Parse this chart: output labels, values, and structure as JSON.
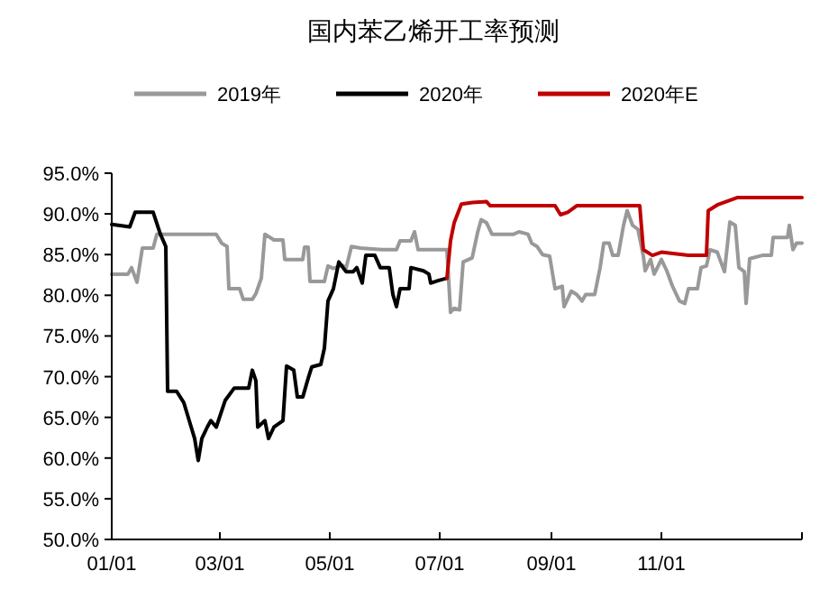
{
  "chart_data": {
    "type": "line",
    "title": "国内苯乙烯开工率预测",
    "legend": "top",
    "xlim": [
      "2020-01-01",
      "2021-01-18"
    ],
    "xticks": [
      {
        "value": "2020-01-01",
        "label": "01/01"
      },
      {
        "value": "2020-03-01",
        "label": "03/01"
      },
      {
        "value": "2020-05-01",
        "label": "05/01"
      },
      {
        "value": "2020-07-01",
        "label": "07/01"
      },
      {
        "value": "2020-09-01",
        "label": "09/01"
      },
      {
        "value": "2020-11-01",
        "label": "11/01"
      },
      {
        "value": "2021-01-18",
        "label": null
      }
    ],
    "ylim": [
      50,
      95
    ],
    "yticks": [
      {
        "value": 50,
        "label": "50.0%"
      },
      {
        "value": 55,
        "label": "55.0%"
      },
      {
        "value": 60,
        "label": "60.0%"
      },
      {
        "value": 65,
        "label": "65.0%"
      },
      {
        "value": 70,
        "label": "70.0%"
      },
      {
        "value": 75,
        "label": "75.0%"
      },
      {
        "value": 80,
        "label": "80.0%"
      },
      {
        "value": 85,
        "label": "85.0%"
      },
      {
        "value": 90,
        "label": "90.0%"
      },
      {
        "value": 95,
        "label": "95.0%"
      }
    ],
    "series": [
      {
        "name": "2019年",
        "color": "#999999",
        "x": [
          "2020-01-01",
          "2020-01-10",
          "2020-01-12",
          "2020-01-15",
          "2020-01-18",
          "2020-01-24",
          "2020-01-26",
          "2020-02-28",
          "2020-03-02",
          "2020-03-05",
          "2020-03-06",
          "2020-03-12",
          "2020-03-14",
          "2020-03-19",
          "2020-03-21",
          "2020-03-24",
          "2020-03-26",
          "2020-03-31",
          "2020-04-05",
          "2020-04-06",
          "2020-04-16",
          "2020-04-17",
          "2020-04-19",
          "2020-04-20",
          "2020-04-28",
          "2020-04-30",
          "2020-05-03",
          "2020-05-08",
          "2020-05-10",
          "2020-05-13",
          "2020-05-18",
          "2020-05-30",
          "2020-06-07",
          "2020-06-09",
          "2020-06-15",
          "2020-06-17",
          "2020-06-19",
          "2020-07-05",
          "2020-07-07",
          "2020-07-09",
          "2020-07-12",
          "2020-07-14",
          "2020-07-19",
          "2020-07-22",
          "2020-07-24",
          "2020-07-27",
          "2020-07-30",
          "2020-08-11",
          "2020-08-14",
          "2020-08-19",
          "2020-08-21",
          "2020-08-24",
          "2020-08-27",
          "2020-08-31",
          "2020-09-03",
          "2020-09-07",
          "2020-09-08",
          "2020-09-12",
          "2020-09-15",
          "2020-09-18",
          "2020-09-20",
          "2020-09-25",
          "2020-09-28",
          "2020-09-30",
          "2020-10-03",
          "2020-10-05",
          "2020-10-08",
          "2020-10-11",
          "2020-10-13",
          "2020-10-16",
          "2020-10-19",
          "2020-10-22",
          "2020-10-23",
          "2020-10-26",
          "2020-10-28",
          "2020-11-01",
          "2020-11-04",
          "2020-11-07",
          "2020-11-11",
          "2020-11-14",
          "2020-11-16",
          "2020-11-21",
          "2020-11-23",
          "2020-11-26",
          "2020-11-28",
          "2020-12-02",
          "2020-12-06",
          "2020-12-09",
          "2020-12-12",
          "2020-12-14",
          "2020-12-17",
          "2020-12-18",
          "2020-12-20",
          "2020-12-27",
          "2021-01-01",
          "2021-01-02",
          "2021-01-10",
          "2021-01-11",
          "2021-01-13",
          "2021-01-15",
          "2021-01-18"
        ],
        "values": [
          82.6,
          82.6,
          83.4,
          81.6,
          85.8,
          85.8,
          87.5,
          87.5,
          86.4,
          86.0,
          80.8,
          80.8,
          79.5,
          79.5,
          80.2,
          82.1,
          87.5,
          86.8,
          86.8,
          84.4,
          84.4,
          85.9,
          85.9,
          81.7,
          81.7,
          83.6,
          83.3,
          83.7,
          83.3,
          86.0,
          85.8,
          85.6,
          85.6,
          86.7,
          86.7,
          87.8,
          85.6,
          85.6,
          77.9,
          78.4,
          78.2,
          84.1,
          84.6,
          87.7,
          89.3,
          88.9,
          87.5,
          87.5,
          87.8,
          87.5,
          86.4,
          86.0,
          85.0,
          84.8,
          80.8,
          81.1,
          78.6,
          80.5,
          80.1,
          79.3,
          80.1,
          80.1,
          83.4,
          86.4,
          86.4,
          84.9,
          84.9,
          88.6,
          90.4,
          88.6,
          88.1,
          84.8,
          83.0,
          84.4,
          82.6,
          84.4,
          83.0,
          81.2,
          79.3,
          79.0,
          80.8,
          80.8,
          83.4,
          83.6,
          85.6,
          85.3,
          82.9,
          89.0,
          88.6,
          83.4,
          82.9,
          79.0,
          84.5,
          84.9,
          84.9,
          87.1,
          87.1,
          88.6,
          85.6,
          86.4,
          86.4
        ]
      },
      {
        "name": "2020年",
        "color": "#000000",
        "x": [
          "2020-01-01",
          "2020-01-11",
          "2020-01-14",
          "2020-01-24",
          "2020-01-28",
          "2020-01-31",
          "2020-02-01",
          "2020-02-06",
          "2020-02-10",
          "2020-02-13",
          "2020-02-16",
          "2020-02-18",
          "2020-02-20",
          "2020-02-23",
          "2020-02-25",
          "2020-02-28",
          "2020-03-04",
          "2020-03-09",
          "2020-03-17",
          "2020-03-19",
          "2020-03-21",
          "2020-03-22",
          "2020-03-26",
          "2020-03-28",
          "2020-03-31",
          "2020-04-05",
          "2020-04-07",
          "2020-04-11",
          "2020-04-13",
          "2020-04-16",
          "2020-04-19",
          "2020-04-21",
          "2020-04-26",
          "2020-04-28",
          "2020-04-30",
          "2020-05-03",
          "2020-05-06",
          "2020-05-10",
          "2020-05-14",
          "2020-05-16",
          "2020-05-19",
          "2020-05-21",
          "2020-05-26",
          "2020-05-29",
          "2020-06-03",
          "2020-06-05",
          "2020-06-07",
          "2020-06-09",
          "2020-06-14",
          "2020-06-15",
          "2020-06-22",
          "2020-06-25",
          "2020-06-26",
          "2020-06-30",
          "2020-07-05"
        ],
        "values": [
          88.7,
          88.4,
          90.2,
          90.2,
          87.5,
          86.0,
          68.2,
          68.2,
          66.8,
          64.6,
          62.4,
          59.7,
          62.4,
          63.8,
          64.6,
          63.8,
          67.1,
          68.6,
          68.6,
          70.8,
          69.5,
          63.8,
          64.6,
          62.4,
          63.8,
          64.6,
          71.3,
          70.8,
          67.5,
          67.5,
          69.8,
          71.2,
          71.5,
          73.5,
          79.3,
          80.8,
          84.1,
          82.9,
          82.9,
          83.4,
          81.5,
          84.9,
          84.9,
          83.4,
          83.4,
          80.1,
          78.6,
          80.8,
          80.8,
          83.4,
          83.0,
          82.6,
          81.5,
          81.8,
          82.1
        ]
      },
      {
        "name": "2020年E",
        "color": "#c00000",
        "x": [
          "2020-07-05",
          "2020-07-07",
          "2020-07-09",
          "2020-07-13",
          "2020-07-19",
          "2020-07-27",
          "2020-07-29",
          "2020-09-03",
          "2020-09-06",
          "2020-09-10",
          "2020-09-15",
          "2020-10-20",
          "2020-10-22",
          "2020-10-27",
          "2020-11-01",
          "2020-11-16",
          "2020-11-26",
          "2020-11-27",
          "2020-12-02",
          "2020-12-13",
          "2021-01-18"
        ],
        "values": [
          82.1,
          86.7,
          88.9,
          91.2,
          91.4,
          91.5,
          91.0,
          91.0,
          89.9,
          90.2,
          91.0,
          91.0,
          85.6,
          84.9,
          85.3,
          84.9,
          84.9,
          90.4,
          91.1,
          92.0,
          92.0
        ]
      }
    ]
  }
}
